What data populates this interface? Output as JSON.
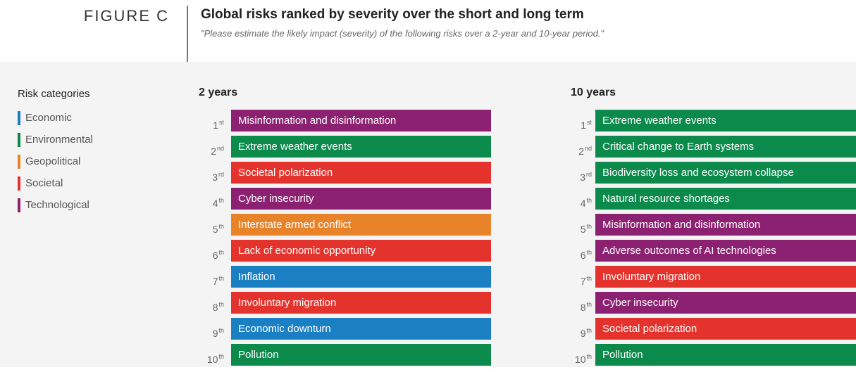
{
  "header": {
    "figure": "FIGURE C",
    "title": "Global risks ranked by severity over the short and long term",
    "subtitle": "\"Please estimate the likely impact (severity) of the following risks over a 2-year and 10-year period.\""
  },
  "legend": {
    "title": "Risk categories",
    "items": [
      {
        "label": "Economic",
        "color": "#1b7fc3"
      },
      {
        "label": "Environmental",
        "color": "#0b8a4b"
      },
      {
        "label": "Geopolitical",
        "color": "#e8832a"
      },
      {
        "label": "Societal",
        "color": "#e4332c"
      },
      {
        "label": "Technological",
        "color": "#8d2171"
      }
    ]
  },
  "columns": [
    {
      "title": "2 years",
      "rows": [
        {
          "rank": "1",
          "suffix": "st",
          "label": "Misinformation and disinformation",
          "color": "#8d2171"
        },
        {
          "rank": "2",
          "suffix": "nd",
          "label": "Extreme weather events",
          "color": "#0b8a4b"
        },
        {
          "rank": "3",
          "suffix": "rd",
          "label": "Societal polarization",
          "color": "#e4332c"
        },
        {
          "rank": "4",
          "suffix": "th",
          "label": "Cyber insecurity",
          "color": "#8d2171"
        },
        {
          "rank": "5",
          "suffix": "th",
          "label": "Interstate armed conflict",
          "color": "#e8832a"
        },
        {
          "rank": "6",
          "suffix": "th",
          "label": "Lack of economic opportunity",
          "color": "#e4332c"
        },
        {
          "rank": "7",
          "suffix": "th",
          "label": "Inflation",
          "color": "#1b7fc3"
        },
        {
          "rank": "8",
          "suffix": "th",
          "label": "Involuntary migration",
          "color": "#e4332c"
        },
        {
          "rank": "9",
          "suffix": "th",
          "label": "Economic downturn",
          "color": "#1b7fc3"
        },
        {
          "rank": "10",
          "suffix": "th",
          "label": "Pollution",
          "color": "#0b8a4b"
        }
      ]
    },
    {
      "title": "10 years",
      "rows": [
        {
          "rank": "1",
          "suffix": "st",
          "label": "Extreme weather events",
          "color": "#0b8a4b"
        },
        {
          "rank": "2",
          "suffix": "nd",
          "label": "Critical change to Earth systems",
          "color": "#0b8a4b"
        },
        {
          "rank": "3",
          "suffix": "rd",
          "label": "Biodiversity loss and ecosystem collapse",
          "color": "#0b8a4b"
        },
        {
          "rank": "4",
          "suffix": "th",
          "label": "Natural resource shortages",
          "color": "#0b8a4b"
        },
        {
          "rank": "5",
          "suffix": "th",
          "label": "Misinformation and disinformation",
          "color": "#8d2171"
        },
        {
          "rank": "6",
          "suffix": "th",
          "label": "Adverse outcomes of AI technologies",
          "color": "#8d2171"
        },
        {
          "rank": "7",
          "suffix": "th",
          "label": "Involuntary migration",
          "color": "#e4332c"
        },
        {
          "rank": "8",
          "suffix": "th",
          "label": "Cyber insecurity",
          "color": "#8d2171"
        },
        {
          "rank": "9",
          "suffix": "th",
          "label": "Societal polarization",
          "color": "#e4332c"
        },
        {
          "rank": "10",
          "suffix": "th",
          "label": "Pollution",
          "color": "#0b8a4b"
        }
      ]
    }
  ]
}
